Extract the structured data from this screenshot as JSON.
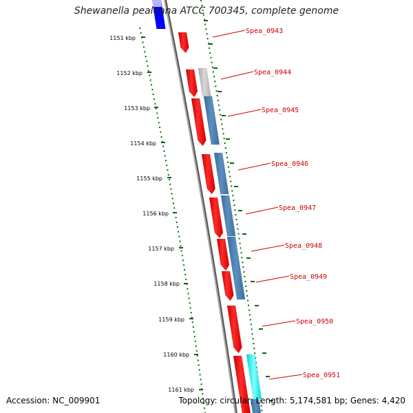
{
  "title": "Shewanella pealeana ATCC 700345, complete genome",
  "accession_text": "Accession: NC_009901",
  "summary_text": "Topology: circular; Length: 5,174,581 bp; Genes: 4,420",
  "ruler": {
    "unit": "kbp",
    "ticks": [
      "1151 kbp",
      "1152 kbp",
      "1153 kbp",
      "1154 kbp",
      "1155 kbp",
      "1156 kbp",
      "1157 kbp",
      "1158 kbp",
      "1159 kbp",
      "1160 kbp",
      "1161 kbp"
    ]
  },
  "genes": [
    {
      "label": "Spea_0943"
    },
    {
      "label": "Spea_0944"
    },
    {
      "label": "Spea_0945"
    },
    {
      "label": "Spea_0946"
    },
    {
      "label": "Spea_0947"
    },
    {
      "label": "Spea_0948"
    },
    {
      "label": "Spea_0949"
    },
    {
      "label": "Spea_0950"
    },
    {
      "label": "Spea_0951"
    }
  ],
  "colors": {
    "cds": "#ff0000",
    "blast_hit": "#4682b4",
    "unknown": "#c0c0c0",
    "upstream_feature": "#0000ff",
    "highlight": "#00ffff",
    "tick": "#006600",
    "backbone": "#808080",
    "label": "#cc0000"
  }
}
